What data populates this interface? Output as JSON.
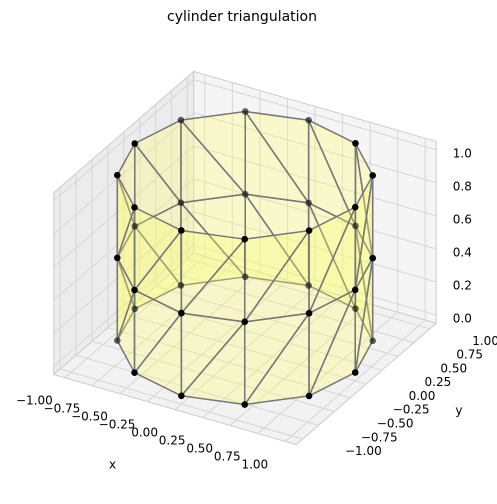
{
  "chart_data": {
    "type": "trisurf3d",
    "title": "cylinder triangulation",
    "xlabel": "x",
    "ylabel": "y",
    "x": [
      1,
      0.87,
      0.5,
      0,
      -0.5,
      -0.87,
      -1,
      -0.87,
      -0.5,
      0,
      0.5,
      0.87,
      1,
      0.87,
      0.5,
      0,
      -0.5,
      -0.87,
      -1,
      -0.87,
      -0.5,
      0,
      0.5,
      0.87,
      1,
      0.87,
      0.5,
      0,
      -0.5,
      -0.87,
      -1,
      -0.87,
      -0.5,
      0,
      0.5,
      0.87
    ],
    "y": [
      0,
      0.5,
      0.87,
      1,
      0.87,
      0.5,
      0,
      -0.5,
      -0.87,
      -1,
      -0.87,
      -0.5,
      0,
      0.5,
      0.87,
      1,
      0.87,
      0.5,
      0,
      -0.5,
      -0.87,
      -1,
      -0.87,
      -0.5,
      0,
      0.5,
      0.87,
      1,
      0.87,
      0.5,
      0,
      -0.5,
      -0.87,
      -1,
      -0.87,
      -0.5
    ],
    "z": [
      0,
      0,
      0,
      0,
      0,
      0,
      0,
      0,
      0,
      0,
      0,
      0,
      0.5,
      0.5,
      0.5,
      0.5,
      0.5,
      0.5,
      0.5,
      0.5,
      0.5,
      0.5,
      0.5,
      0.5,
      1,
      1,
      1,
      1,
      1,
      1,
      1,
      1,
      1,
      1,
      1,
      1
    ],
    "face_color": "#ffff66",
    "edge_color": "#777777",
    "point_color": "#000000",
    "xlim": [
      -1.1,
      1.1
    ],
    "ylim": [
      -1.1,
      1.1
    ],
    "zlim": [
      -0.05,
      1.05
    ],
    "xticks": [
      {
        "value": -1,
        "label": "−1.00"
      },
      {
        "value": -0.75,
        "label": "−0.75"
      },
      {
        "value": -0.5,
        "label": "−0.50"
      },
      {
        "value": -0.25,
        "label": "−0.25"
      },
      {
        "value": 0,
        "label": "0.00"
      },
      {
        "value": 0.25,
        "label": "0.25"
      },
      {
        "value": 0.5,
        "label": "0.50"
      },
      {
        "value": 0.75,
        "label": "0.75"
      },
      {
        "value": 1,
        "label": "1.00"
      }
    ],
    "yticks": [
      {
        "value": -1,
        "label": "−1.00"
      },
      {
        "value": -0.75,
        "label": "−0.75"
      },
      {
        "value": -0.5,
        "label": "−0.50"
      },
      {
        "value": -0.25,
        "label": "−0.25"
      },
      {
        "value": 0,
        "label": "0.00"
      },
      {
        "value": 0.25,
        "label": "0.25"
      },
      {
        "value": 0.5,
        "label": "0.50"
      },
      {
        "value": 0.75,
        "label": "0.75"
      },
      {
        "value": 1,
        "label": "1.00"
      }
    ],
    "zticks": [
      {
        "value": 0,
        "label": "0.0"
      },
      {
        "value": 0.2,
        "label": "0.2"
      },
      {
        "value": 0.4,
        "label": "0.4"
      },
      {
        "value": 0.6,
        "label": "0.6"
      },
      {
        "value": 0.8,
        "label": "0.8"
      },
      {
        "value": 1,
        "label": "1.0"
      }
    ],
    "grid": true
  }
}
